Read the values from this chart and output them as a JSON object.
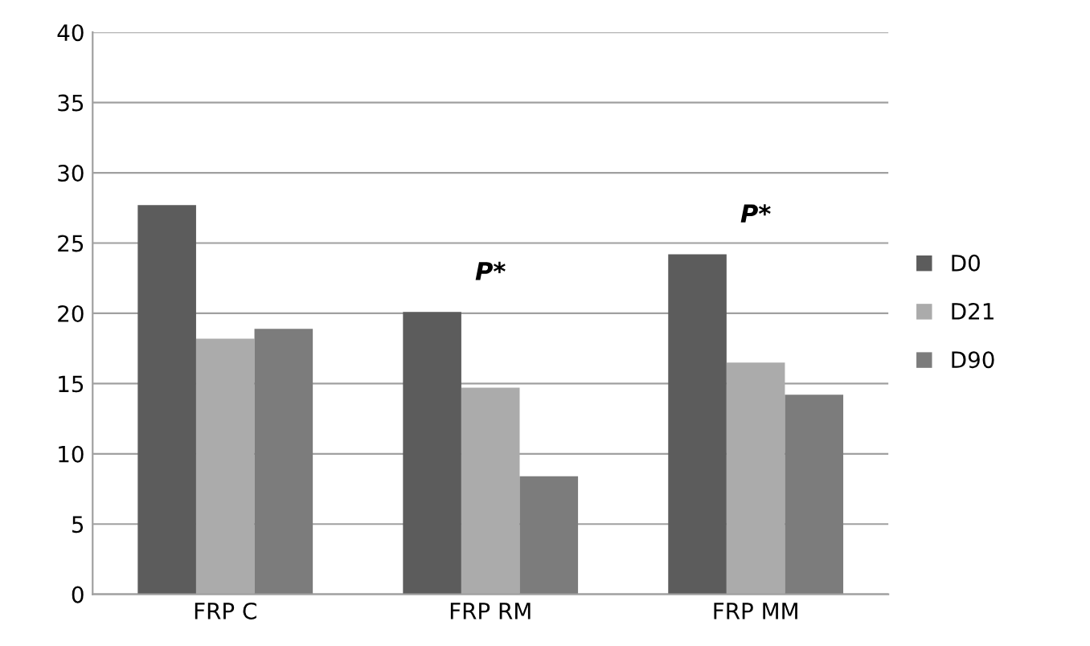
{
  "chart_data": {
    "type": "bar",
    "categories": [
      "FRP C",
      "FRP RM",
      "FRP MM"
    ],
    "series": [
      {
        "name": "D0",
        "color": "#5c5c5c",
        "values": [
          27.7,
          20.1,
          24.2
        ]
      },
      {
        "name": "D21",
        "color": "#ababab",
        "values": [
          18.2,
          14.7,
          16.5
        ]
      },
      {
        "name": "D90",
        "color": "#7c7c7c",
        "values": [
          18.9,
          8.4,
          14.2
        ]
      }
    ],
    "ylim": [
      0,
      40
    ],
    "yticks": [
      0,
      5,
      10,
      15,
      20,
      25,
      30,
      35,
      40
    ],
    "grid": "y",
    "legend": "right",
    "annotations": [
      "P*",
      "P*"
    ]
  }
}
